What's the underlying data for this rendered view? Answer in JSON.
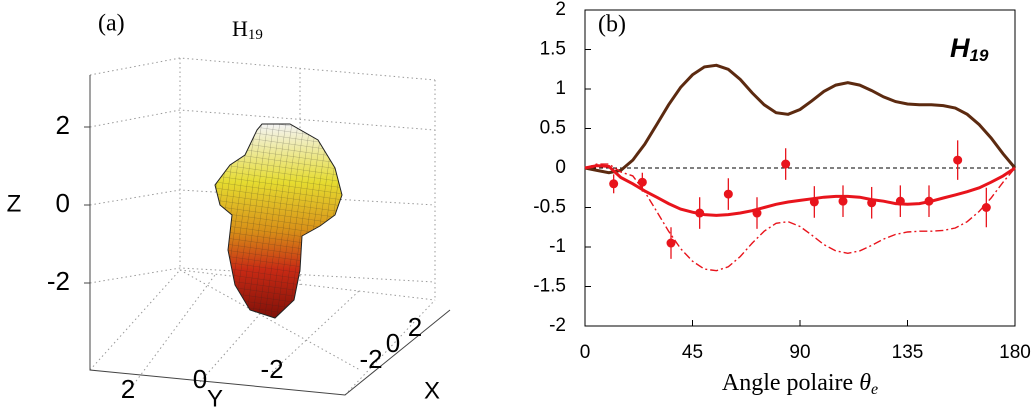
{
  "chart_data": [
    {
      "type": "surface3d",
      "panel_label": "(a)",
      "title": "H",
      "title_subscript": "19",
      "xlabel": "X",
      "ylabel": "Y",
      "zlabel": "Z",
      "xlim": [
        -3,
        3
      ],
      "ylim": [
        -3,
        3
      ],
      "zlim": [
        -3,
        3
      ],
      "xticks": [
        -2,
        0,
        2
      ],
      "yticks": [
        -2,
        0,
        2
      ],
      "zticks": [
        -2,
        0,
        2
      ],
      "grid": true
    },
    {
      "type": "line",
      "panel_label": "(b)",
      "title": "H",
      "title_subscript": "19",
      "xlabel": "Angle polaire ",
      "xlabel_symbol": "θ",
      "xlabel_subscript": "e",
      "xlim": [
        0,
        180
      ],
      "ylim": [
        -2,
        2
      ],
      "xticks": [
        0,
        45,
        90,
        135,
        180
      ],
      "yticks": [
        -2,
        -1.5,
        -1,
        -0.5,
        0,
        0.5,
        1,
        1.5,
        2
      ],
      "reference_line": 0,
      "x": [
        0,
        5,
        10,
        15,
        20,
        25,
        30,
        35,
        40,
        45,
        50,
        55,
        60,
        65,
        70,
        75,
        80,
        85,
        90,
        95,
        100,
        105,
        110,
        115,
        120,
        125,
        130,
        135,
        140,
        145,
        150,
        155,
        160,
        165,
        170,
        175,
        180
      ],
      "series": [
        {
          "color": "#5c2a10",
          "style": "solid",
          "values": [
            0,
            -0.03,
            -0.06,
            -0.03,
            0.1,
            0.3,
            0.55,
            0.8,
            1.02,
            1.18,
            1.28,
            1.3,
            1.25,
            1.12,
            0.95,
            0.8,
            0.7,
            0.68,
            0.74,
            0.85,
            0.97,
            1.05,
            1.08,
            1.05,
            0.98,
            0.9,
            0.84,
            0.81,
            0.8,
            0.8,
            0.79,
            0.76,
            0.68,
            0.55,
            0.38,
            0.18,
            0
          ]
        },
        {
          "color": "#e8141c",
          "style": "solid",
          "values": [
            0,
            0.03,
            0.02,
            -0.12,
            -0.2,
            -0.29,
            -0.37,
            -0.45,
            -0.52,
            -0.56,
            -0.59,
            -0.6,
            -0.59,
            -0.57,
            -0.54,
            -0.5,
            -0.46,
            -0.43,
            -0.41,
            -0.39,
            -0.37,
            -0.36,
            -0.36,
            -0.37,
            -0.4,
            -0.42,
            -0.45,
            -0.46,
            -0.45,
            -0.42,
            -0.38,
            -0.34,
            -0.3,
            -0.25,
            -0.18,
            -0.1,
            0
          ]
        },
        {
          "color": "#e8141c",
          "style": "dashdot",
          "values": [
            0,
            0.05,
            0.05,
            -0.05,
            -0.1,
            -0.3,
            -0.55,
            -0.8,
            -1.02,
            -1.18,
            -1.28,
            -1.3,
            -1.25,
            -1.12,
            -0.95,
            -0.8,
            -0.7,
            -0.68,
            -0.74,
            -0.85,
            -0.97,
            -1.05,
            -1.08,
            -1.05,
            -0.98,
            -0.9,
            -0.84,
            -0.81,
            -0.8,
            -0.8,
            -0.79,
            -0.76,
            -0.68,
            -0.55,
            -0.38,
            -0.18,
            0
          ]
        }
      ],
      "points": {
        "color": "#e8141c",
        "x": [
          12,
          24,
          36,
          48,
          60,
          72,
          84,
          96,
          108,
          120,
          132,
          144,
          156,
          168
        ],
        "values": [
          -0.2,
          -0.18,
          -0.95,
          -0.57,
          -0.33,
          -0.57,
          0.05,
          -0.43,
          -0.42,
          -0.44,
          -0.42,
          -0.42,
          0.1,
          -0.5
        ],
        "errors": [
          0.12,
          0.12,
          0.2,
          0.2,
          0.2,
          0.2,
          0.2,
          0.2,
          0.2,
          0.2,
          0.2,
          0.2,
          0.25,
          0.25
        ]
      }
    }
  ]
}
